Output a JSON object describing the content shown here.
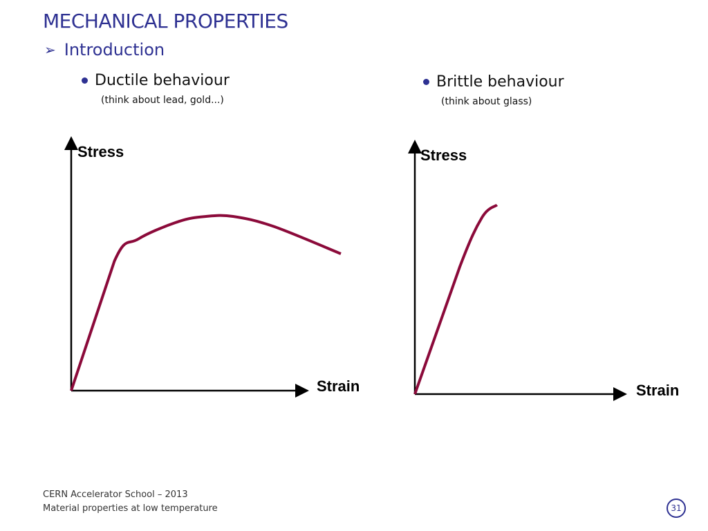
{
  "slide": {
    "title": "MECHANICAL PROPERTIES",
    "section": "Introduction",
    "section_bullet_icon": "arrow-bullet-icon"
  },
  "ductile": {
    "heading": "Ductile behaviour",
    "note": "(think about lead, gold...)",
    "y_label": "Stress",
    "x_label": "Strain"
  },
  "brittle": {
    "heading": "Brittle behaviour",
    "note": "(think about glass)",
    "y_label": "Stress",
    "x_label": "Strain"
  },
  "footer": {
    "line1": "CERN Accelerator School – 2013",
    "line2": "Material properties at low temperature",
    "page": "31"
  },
  "colors": {
    "accent": "#2e3192",
    "curve": "#8b0a3a",
    "axis": "#000000"
  },
  "chart_data": [
    {
      "type": "line",
      "series": [
        {
          "x": [
            0,
            0.16,
            0.25,
            0.4,
            0.5,
            0.6,
            0.75,
            1.0
          ],
          "y": [
            0,
            0.52,
            0.61,
            0.68,
            0.7,
            0.7,
            0.66,
            0.55
          ]
        }
      ],
      "xlabel": "Strain",
      "ylabel": "Stress"
    },
    {
      "type": "line",
      "series": [
        {
          "x": [
            0,
            0.18,
            0.27,
            0.33
          ],
          "y": [
            0,
            0.51,
            0.71,
            0.76
          ]
        }
      ],
      "xlabel": "Strain",
      "ylabel": "Stress"
    }
  ]
}
